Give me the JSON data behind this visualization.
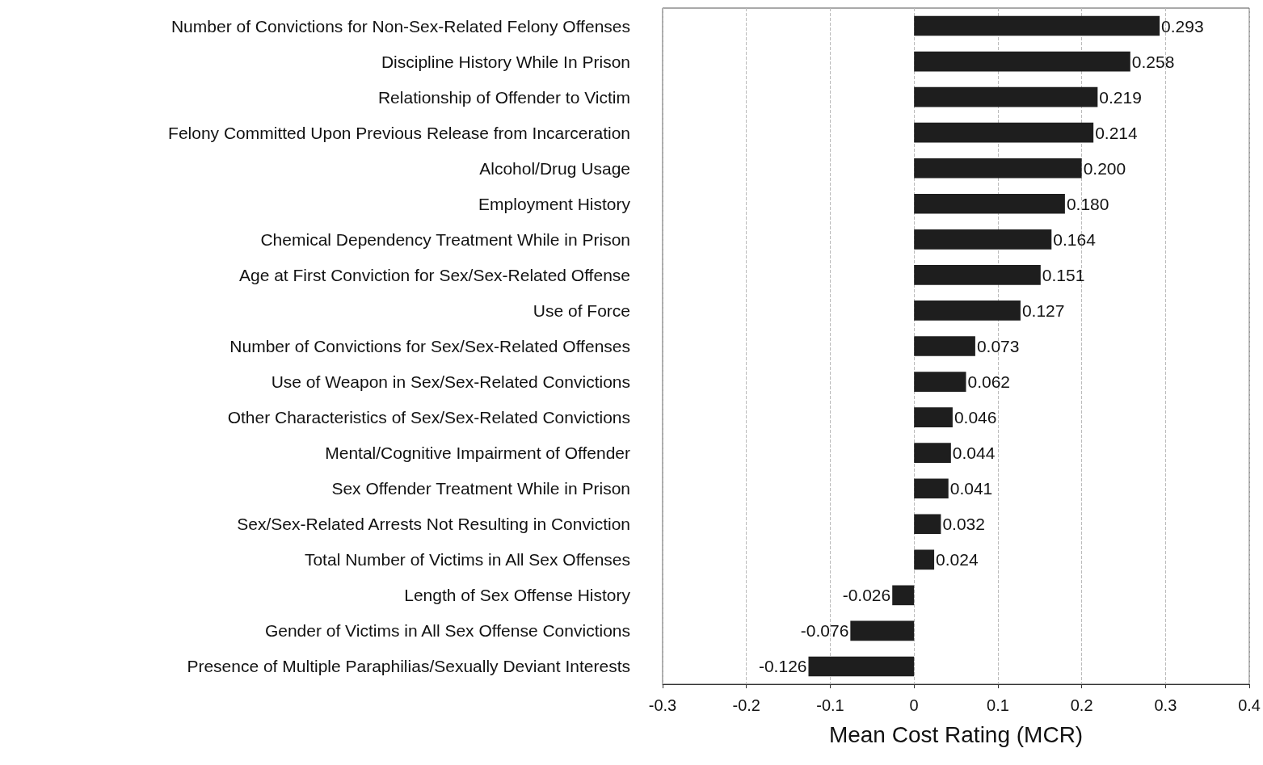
{
  "chart_data": {
    "type": "bar",
    "orientation": "horizontal",
    "xlabel": "Mean Cost Rating (MCR)",
    "categories": [
      "Number of Convictions for Non-Sex-Related Felony Offenses",
      "Discipline History While In Prison",
      "Relationship of Offender to Victim",
      "Felony Committed Upon Previous Release from Incarceration",
      "Alcohol/Drug Usage",
      "Employment History",
      "Chemical Dependency Treatment While in Prison",
      "Age at First Conviction for Sex/Sex-Related Offense",
      "Use of Force",
      "Number of Convictions for Sex/Sex-Related Offenses",
      "Use of Weapon in Sex/Sex-Related Convictions",
      "Other Characteristics of Sex/Sex-Related Convictions",
      "Mental/Cognitive Impairment of Offender",
      "Sex Offender Treatment While in Prison",
      "Sex/Sex-Related Arrests Not Resulting in Conviction",
      "Total Number of Victims in All Sex Offenses",
      "Length of Sex Offense History",
      "Gender of Victims in All Sex Offense Convictions",
      "Presence of Multiple Paraphilias/Sexually Deviant Interests"
    ],
    "values": [
      0.293,
      0.258,
      0.219,
      0.214,
      0.2,
      0.18,
      0.164,
      0.151,
      0.127,
      0.073,
      0.062,
      0.046,
      0.044,
      0.041,
      0.032,
      0.024,
      -0.026,
      -0.076,
      -0.126
    ],
    "value_labels": [
      "0.293",
      "0.258",
      "0.219",
      "0.214",
      "0.200",
      "0.180",
      "0.164",
      "0.151",
      "0.127",
      "0.073",
      "0.062",
      "0.046",
      "0.044",
      "0.041",
      "0.032",
      "0.024",
      "-0.026",
      "-0.076",
      "-0.126"
    ],
    "color": "#1e1e1e",
    "xlim": [
      -0.3,
      0.4
    ],
    "xticks": [
      -0.3,
      -0.2,
      -0.1,
      0,
      0.1,
      0.2,
      0.3,
      0.4
    ],
    "grid": "x"
  }
}
